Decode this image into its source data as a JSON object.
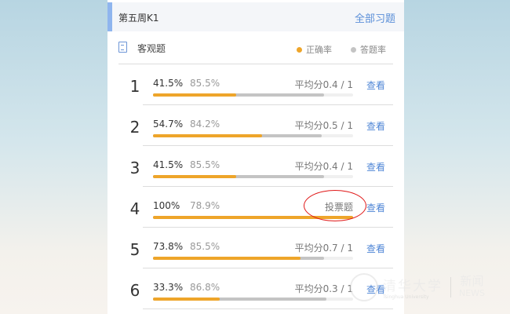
{
  "header": {
    "title": "第五周K1",
    "all_label": "全部习题"
  },
  "section": {
    "icon": "document-icon",
    "label": "客观题",
    "legend": [
      {
        "label": "正确率",
        "color": "#eea52a"
      },
      {
        "label": "答题率",
        "color": "#c4c4c4"
      }
    ]
  },
  "rows": [
    {
      "num": "1",
      "accuracy": "41.5%",
      "answer_rate": "85.5%",
      "avg": "平均分0.4 / 1",
      "view": "查看",
      "acc_value": 41.5,
      "rate_value": 85.5
    },
    {
      "num": "2",
      "accuracy": "54.7%",
      "answer_rate": "84.2%",
      "avg": "平均分0.5 / 1",
      "view": "查看",
      "acc_value": 54.7,
      "rate_value": 84.2
    },
    {
      "num": "3",
      "accuracy": "41.5%",
      "answer_rate": "85.5%",
      "avg": "平均分0.4 / 1",
      "view": "查看",
      "acc_value": 41.5,
      "rate_value": 85.5
    },
    {
      "num": "4",
      "accuracy": "100%",
      "answer_rate": "78.9%",
      "avg": "投票题",
      "view": "查看",
      "acc_value": 100,
      "rate_value": 78.9
    },
    {
      "num": "5",
      "accuracy": "73.8%",
      "answer_rate": "85.5%",
      "avg": "平均分0.7 / 1",
      "view": "查看",
      "acc_value": 73.8,
      "rate_value": 85.5
    },
    {
      "num": "6",
      "accuracy": "33.3%",
      "answer_rate": "86.8%",
      "avg": "平均分0.3 / 1",
      "view": "查看",
      "acc_value": 33.3,
      "rate_value": 86.8
    }
  ],
  "watermark": {
    "cn": "清华大学",
    "en": "Tsinghua University",
    "news_cn": "新闻",
    "news_en": "NEWS"
  }
}
